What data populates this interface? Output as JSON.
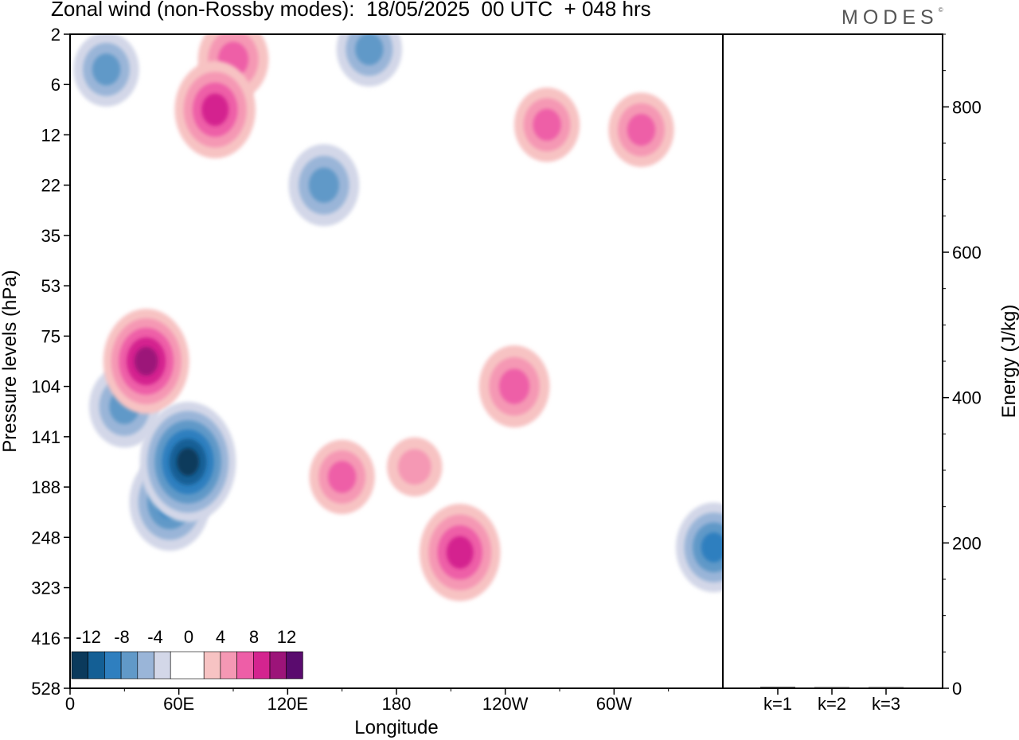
{
  "title": "Zonal wind (non-Rossby modes):  18/05/2025  00 UTC  + 048 hrs",
  "logo": "MODES",
  "logo_mark": "©",
  "colors": {
    "neg": [
      "#0b3a5c",
      "#145f95",
      "#2f7fbf",
      "#6199c8",
      "#9ab5d8",
      "#d3d7e8"
    ],
    "zero": "#ffffff",
    "pos": [
      "#f7c3c3",
      "#f598b4",
      "#ee5ea7",
      "#d4248f",
      "#9c1479",
      "#5a0b6e"
    ]
  },
  "chart_data": [
    {
      "type": "heatmap",
      "xlabel": "Longitude",
      "ylabel": "Pressure levels (hPa)",
      "x_ticks": [
        "0",
        "60E",
        "120E",
        "180",
        "120W",
        "60W"
      ],
      "x_tick_values": [
        0,
        60,
        120,
        180,
        240,
        300
      ],
      "xlim": [
        0,
        360
      ],
      "y_ticks": [
        "2",
        "6",
        "12",
        "22",
        "35",
        "53",
        "75",
        "104",
        "141",
        "188",
        "248",
        "323",
        "416",
        "528"
      ],
      "colorbar": {
        "labels": [
          "-12",
          "-8",
          "-4",
          "0",
          "4",
          "8",
          "12"
        ],
        "levels": [
          -14,
          -12,
          -10,
          -8,
          -6,
          -4,
          -2,
          2,
          4,
          6,
          8,
          10,
          12,
          14
        ]
      },
      "features": [
        {
          "lon": 42,
          "level": 6.5,
          "value": 10
        },
        {
          "lon": 80,
          "level": 1.5,
          "value": 9
        },
        {
          "lon": 90,
          "level": 0.5,
          "value": 7
        },
        {
          "lon": 65,
          "level": 8.5,
          "value": -12
        },
        {
          "lon": 55,
          "level": 9.3,
          "value": -9
        },
        {
          "lon": 30,
          "level": 7.4,
          "value": -7
        },
        {
          "lon": 20,
          "level": 0.7,
          "value": -6
        },
        {
          "lon": 140,
          "level": 3.0,
          "value": -7
        },
        {
          "lon": 215,
          "level": 10.3,
          "value": 9
        },
        {
          "lon": 150,
          "level": 8.8,
          "value": 6
        },
        {
          "lon": 190,
          "level": 8.6,
          "value": 4
        },
        {
          "lon": 245,
          "level": 7.0,
          "value": 7
        },
        {
          "lon": 263,
          "level": 1.8,
          "value": 6
        },
        {
          "lon": 315,
          "level": 1.9,
          "value": 6
        },
        {
          "lon": 355,
          "level": 10.2,
          "value": -8
        },
        {
          "lon": 165,
          "level": 0.3,
          "value": -6
        }
      ]
    },
    {
      "type": "bar",
      "ylabel": "Energy (J/kg)",
      "categories": [
        "k=1",
        "k=2",
        "k=3"
      ],
      "values": [
        2,
        1,
        0.5
      ],
      "ylim": [
        0,
        900
      ],
      "y_ticks": [
        0,
        200,
        400,
        600,
        800
      ]
    }
  ]
}
